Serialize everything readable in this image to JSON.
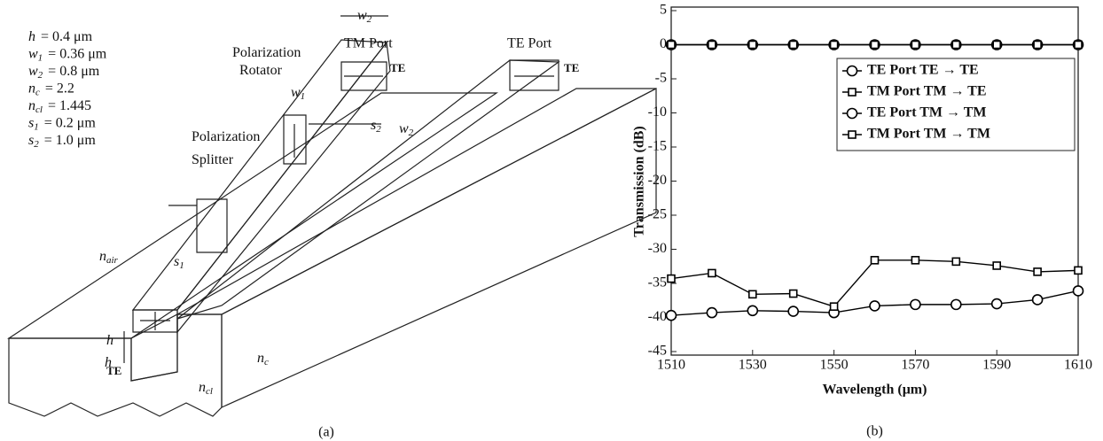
{
  "diagram": {
    "parameters": [
      {
        "symbol": "h",
        "value": "= 0.4 μm"
      },
      {
        "symbol": "w",
        "sub": "1",
        "value": "= 0.36 μm"
      },
      {
        "symbol": "w",
        "sub": "2",
        "value": "= 0.8 μm"
      },
      {
        "symbol": "n",
        "sub": "c",
        "value": "= 2.2"
      },
      {
        "symbol": "n",
        "sub": "cl",
        "value": "= 1.445"
      },
      {
        "symbol": "s",
        "sub": "1",
        "value": "= 0.2 μm"
      },
      {
        "symbol": "s",
        "sub": "2",
        "value": "= 1.0 μm"
      }
    ],
    "rotator": [
      "Polarization",
      "Rotator"
    ],
    "splitter": [
      "Polarization",
      "Splitter"
    ],
    "tm_port": "TM Port",
    "te_port": "TE Port",
    "mode_labels": [
      "TE",
      "TE",
      "TE"
    ],
    "symbols": [
      {
        "symbol": "w",
        "sub": "2"
      },
      {
        "symbol": "w",
        "sub": "1"
      },
      {
        "symbol": "s",
        "sub": "2"
      },
      {
        "symbol": "w",
        "sub": "2"
      },
      {
        "symbol": "s",
        "sub": "1"
      },
      {
        "symbol": "n",
        "sub": "air"
      },
      {
        "symbol": "h"
      },
      {
        "symbol": "h"
      },
      {
        "symbol": "n",
        "sub": "c"
      },
      {
        "symbol": "n",
        "sub": "cl"
      }
    ],
    "caption": "(a)"
  },
  "chart_data": {
    "type": "line",
    "caption": "(b)",
    "x_label": "Wavelength (μm)",
    "y_label": "Transmission (dB)",
    "x": [
      1510,
      1520,
      1530,
      1540,
      1550,
      1560,
      1570,
      1580,
      1590,
      1600,
      1610
    ],
    "xlim": [
      1510,
      1610
    ],
    "xticks": [
      1510,
      1530,
      1550,
      1570,
      1590,
      1610
    ],
    "ylim": [
      -45,
      5
    ],
    "yticks": [
      5,
      0,
      -5,
      -10,
      -15,
      -20,
      -25,
      -30,
      -35,
      -40,
      -45
    ],
    "legend": "upper right",
    "series": [
      {
        "name": "TE Port TE → TE",
        "color": "#000000",
        "marker": "circle",
        "values": [
          0,
          0,
          0,
          0,
          0,
          0,
          0,
          0,
          0,
          0,
          0
        ]
      },
      {
        "name": "TM Port TM → TE",
        "color": "#000000",
        "marker": "square",
        "values": [
          0,
          0,
          0,
          0,
          0,
          0,
          0,
          0,
          0,
          0,
          0
        ]
      },
      {
        "name": "TE Port TM → TM",
        "color": "#000000",
        "marker": "circle",
        "values": [
          -39.7,
          -39.3,
          -39,
          -39.1,
          -39.3,
          -38.3,
          -38.1,
          -38.1,
          -38,
          -37.4,
          -36.1
        ]
      },
      {
        "name": "TM Port TM → TM",
        "color": "#000000",
        "marker": "square",
        "values": [
          -34.3,
          -33.5,
          -36.6,
          -36.5,
          -38.4,
          -31.6,
          -31.6,
          -31.8,
          -32.4,
          -33.3,
          -33.1
        ]
      }
    ]
  }
}
